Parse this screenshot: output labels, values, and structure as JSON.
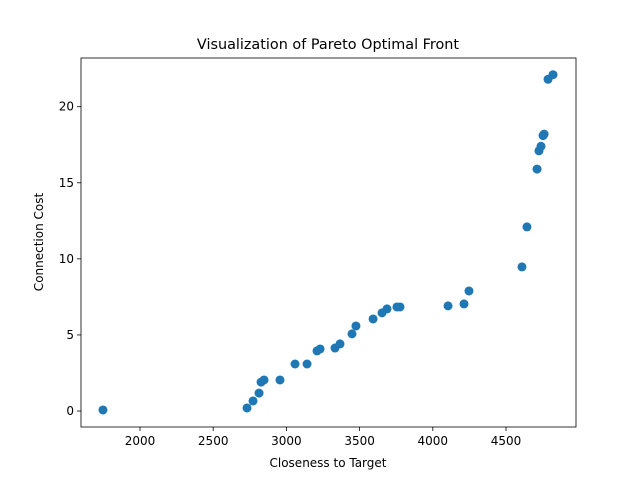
{
  "chart_data": {
    "type": "scatter",
    "title": "Visualization of Pareto Optimal Front",
    "x_label": "Closeness to Target",
    "y_label": "Connection Cost",
    "color": "#1f77b4",
    "grid": false,
    "x": [
      1747,
      2731,
      2772,
      2813,
      2827,
      2847,
      2956,
      3059,
      3141,
      3209,
      3230,
      3332,
      3366,
      3448,
      3475,
      3592,
      3653,
      3687,
      3755,
      3776,
      4104,
      4213,
      4247,
      4609,
      4643,
      4712,
      4725,
      4739,
      4753,
      4760,
      4787,
      4821
    ],
    "values": [
      0.07,
      0.2,
      0.66,
      1.18,
      1.9,
      2.04,
      2.04,
      3.09,
      3.09,
      3.95,
      4.08,
      4.14,
      4.41,
      5.07,
      5.59,
      6.05,
      6.45,
      6.71,
      6.84,
      6.84,
      6.91,
      7.04,
      7.89,
      9.47,
      12.1,
      15.9,
      17.1,
      17.4,
      18.1,
      18.2,
      21.8,
      22.1
    ],
    "xlim": [
      1597,
      4978
    ],
    "ylim": [
      -1.05,
      23.2
    ],
    "xticks": [
      2000,
      2500,
      3000,
      3500,
      4000,
      4500
    ],
    "yticks": [
      0,
      5,
      10,
      15,
      20
    ]
  }
}
